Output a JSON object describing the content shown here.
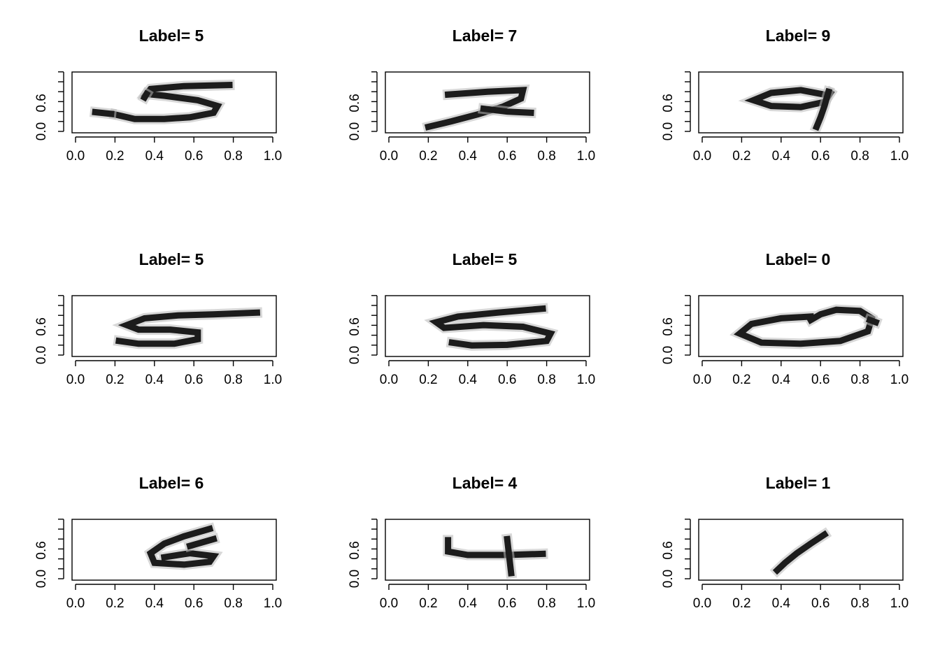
{
  "chart_data": [
    {
      "type": "heatmap",
      "title": "Label= 5",
      "xlim": [
        0,
        1
      ],
      "ylim": [
        0,
        1
      ],
      "x_ticks": [
        "0.0",
        "0.2",
        "0.4",
        "0.6",
        "0.8",
        "1.0"
      ],
      "y_ticks": [
        "0.0",
        "0.6"
      ],
      "colormap": "grayscale (white = 0, black = 1)",
      "strokes": [
        [
          [
            0.2,
            0.3
          ],
          [
            0.3,
            0.22
          ],
          [
            0.45,
            0.22
          ],
          [
            0.58,
            0.25
          ],
          [
            0.7,
            0.33
          ],
          [
            0.72,
            0.45
          ],
          [
            0.62,
            0.55
          ],
          [
            0.45,
            0.63
          ],
          [
            0.36,
            0.66
          ],
          [
            0.38,
            0.75
          ],
          [
            0.55,
            0.8
          ],
          [
            0.78,
            0.82
          ]
        ],
        [
          [
            0.36,
            0.66
          ],
          [
            0.35,
            0.6
          ]
        ],
        [
          [
            0.1,
            0.34
          ],
          [
            0.18,
            0.31
          ]
        ]
      ]
    },
    {
      "type": "heatmap",
      "title": "Label= 7",
      "xlim": [
        0,
        1
      ],
      "ylim": [
        0,
        1
      ],
      "x_ticks": [
        "0.0",
        "0.2",
        "0.4",
        "0.6",
        "0.8",
        "1.0"
      ],
      "y_ticks": [
        "0.0",
        "0.6"
      ],
      "colormap": "grayscale (white = 0, black = 1)",
      "strokes": [
        [
          [
            0.3,
            0.65
          ],
          [
            0.5,
            0.7
          ],
          [
            0.68,
            0.73
          ],
          [
            0.67,
            0.58
          ],
          [
            0.58,
            0.44
          ],
          [
            0.45,
            0.3
          ],
          [
            0.32,
            0.18
          ],
          [
            0.2,
            0.08
          ]
        ],
        [
          [
            0.48,
            0.4
          ],
          [
            0.6,
            0.35
          ],
          [
            0.72,
            0.33
          ]
        ]
      ]
    },
    {
      "type": "heatmap",
      "title": "Label= 9",
      "xlim": [
        0,
        1
      ],
      "ylim": [
        0,
        1
      ],
      "x_ticks": [
        "0.0",
        "0.2",
        "0.4",
        "0.6",
        "0.8",
        "1.0"
      ],
      "y_ticks": [
        "0.0",
        "0.6"
      ],
      "colormap": "grayscale (white = 0, black = 1)",
      "strokes": [
        [
          [
            0.62,
            0.65
          ],
          [
            0.5,
            0.73
          ],
          [
            0.35,
            0.68
          ],
          [
            0.26,
            0.55
          ],
          [
            0.35,
            0.45
          ],
          [
            0.5,
            0.43
          ],
          [
            0.62,
            0.52
          ],
          [
            0.65,
            0.68
          ]
        ],
        [
          [
            0.64,
            0.7
          ],
          [
            0.62,
            0.45
          ],
          [
            0.6,
            0.25
          ],
          [
            0.58,
            0.08
          ]
        ]
      ]
    },
    {
      "type": "heatmap",
      "title": "Label= 5",
      "xlim": [
        0,
        1
      ],
      "ylim": [
        0,
        1
      ],
      "x_ticks": [
        "0.0",
        "0.2",
        "0.4",
        "0.6",
        "0.8",
        "1.0"
      ],
      "y_ticks": [
        "0.0",
        "0.6"
      ],
      "colormap": "grayscale (white = 0, black = 1)",
      "strokes": [
        [
          [
            0.92,
            0.75
          ],
          [
            0.7,
            0.72
          ],
          [
            0.52,
            0.7
          ],
          [
            0.35,
            0.65
          ],
          [
            0.26,
            0.53
          ],
          [
            0.32,
            0.45
          ],
          [
            0.48,
            0.45
          ],
          [
            0.62,
            0.4
          ],
          [
            0.62,
            0.28
          ],
          [
            0.5,
            0.2
          ],
          [
            0.32,
            0.2
          ],
          [
            0.22,
            0.25
          ]
        ]
      ]
    },
    {
      "type": "heatmap",
      "title": "Label= 5",
      "xlim": [
        0,
        1
      ],
      "ylim": [
        0,
        1
      ],
      "x_ticks": [
        "0.0",
        "0.2",
        "0.4",
        "0.6",
        "0.8",
        "1.0"
      ],
      "y_ticks": [
        "0.0",
        "0.6"
      ],
      "colormap": "grayscale (white = 0, black = 1)",
      "strokes": [
        [
          [
            0.78,
            0.82
          ],
          [
            0.55,
            0.75
          ],
          [
            0.35,
            0.68
          ],
          [
            0.24,
            0.58
          ],
          [
            0.28,
            0.48
          ],
          [
            0.48,
            0.53
          ],
          [
            0.68,
            0.5
          ],
          [
            0.82,
            0.38
          ],
          [
            0.8,
            0.25
          ],
          [
            0.6,
            0.18
          ],
          [
            0.42,
            0.17
          ],
          [
            0.32,
            0.22
          ]
        ]
      ]
    },
    {
      "type": "heatmap",
      "title": "Label= 0",
      "xlim": [
        0,
        1
      ],
      "ylim": [
        0,
        1
      ],
      "x_ticks": [
        "0.0",
        "0.2",
        "0.4",
        "0.6",
        "0.8",
        "1.0"
      ],
      "y_ticks": [
        "0.0",
        "0.6"
      ],
      "colormap": "grayscale (white = 0, black = 1)",
      "strokes": [
        [
          [
            0.55,
            0.68
          ],
          [
            0.4,
            0.65
          ],
          [
            0.25,
            0.55
          ],
          [
            0.19,
            0.38
          ],
          [
            0.3,
            0.22
          ],
          [
            0.5,
            0.2
          ],
          [
            0.7,
            0.25
          ],
          [
            0.84,
            0.42
          ],
          [
            0.86,
            0.65
          ],
          [
            0.8,
            0.78
          ],
          [
            0.68,
            0.8
          ],
          [
            0.6,
            0.72
          ],
          [
            0.55,
            0.62
          ]
        ],
        [
          [
            0.85,
            0.62
          ],
          [
            0.88,
            0.58
          ]
        ]
      ]
    },
    {
      "type": "heatmap",
      "title": "Label= 6",
      "xlim": [
        0,
        1
      ],
      "ylim": [
        0,
        1
      ],
      "x_ticks": [
        "0.0",
        "0.2",
        "0.4",
        "0.6",
        "0.8",
        "1.0"
      ],
      "y_ticks": [
        "0.0",
        "0.6"
      ],
      "colormap": "grayscale (white = 0, black = 1)",
      "strokes": [
        [
          [
            0.68,
            0.88
          ],
          [
            0.55,
            0.75
          ],
          [
            0.45,
            0.62
          ],
          [
            0.38,
            0.45
          ],
          [
            0.4,
            0.28
          ],
          [
            0.55,
            0.25
          ],
          [
            0.68,
            0.3
          ],
          [
            0.7,
            0.4
          ],
          [
            0.58,
            0.45
          ],
          [
            0.45,
            0.38
          ]
        ],
        [
          [
            0.7,
            0.7
          ],
          [
            0.58,
            0.58
          ]
        ]
      ]
    },
    {
      "type": "heatmap",
      "title": "Label= 4",
      "xlim": [
        0,
        1
      ],
      "ylim": [
        0,
        1
      ],
      "x_ticks": [
        "0.0",
        "0.2",
        "0.4",
        "0.6",
        "0.8",
        "1.0"
      ],
      "y_ticks": [
        "0.0",
        "0.6"
      ],
      "colormap": "grayscale (white = 0, black = 1)",
      "strokes": [
        [
          [
            0.3,
            0.68
          ],
          [
            0.3,
            0.48
          ],
          [
            0.4,
            0.42
          ],
          [
            0.6,
            0.42
          ],
          [
            0.78,
            0.44
          ]
        ],
        [
          [
            0.6,
            0.7
          ],
          [
            0.61,
            0.4
          ],
          [
            0.62,
            0.1
          ]
        ]
      ]
    },
    {
      "type": "heatmap",
      "title": "Label= 1",
      "xlim": [
        0,
        1
      ],
      "ylim": [
        0,
        1
      ],
      "x_ticks": [
        "0.0",
        "0.2",
        "0.4",
        "0.6",
        "0.8",
        "1.0"
      ],
      "y_ticks": [
        "0.0",
        "0.6"
      ],
      "colormap": "grayscale (white = 0, black = 1)",
      "strokes": [
        [
          [
            0.62,
            0.78
          ],
          [
            0.55,
            0.62
          ],
          [
            0.48,
            0.45
          ],
          [
            0.42,
            0.28
          ],
          [
            0.38,
            0.15
          ]
        ]
      ]
    }
  ]
}
